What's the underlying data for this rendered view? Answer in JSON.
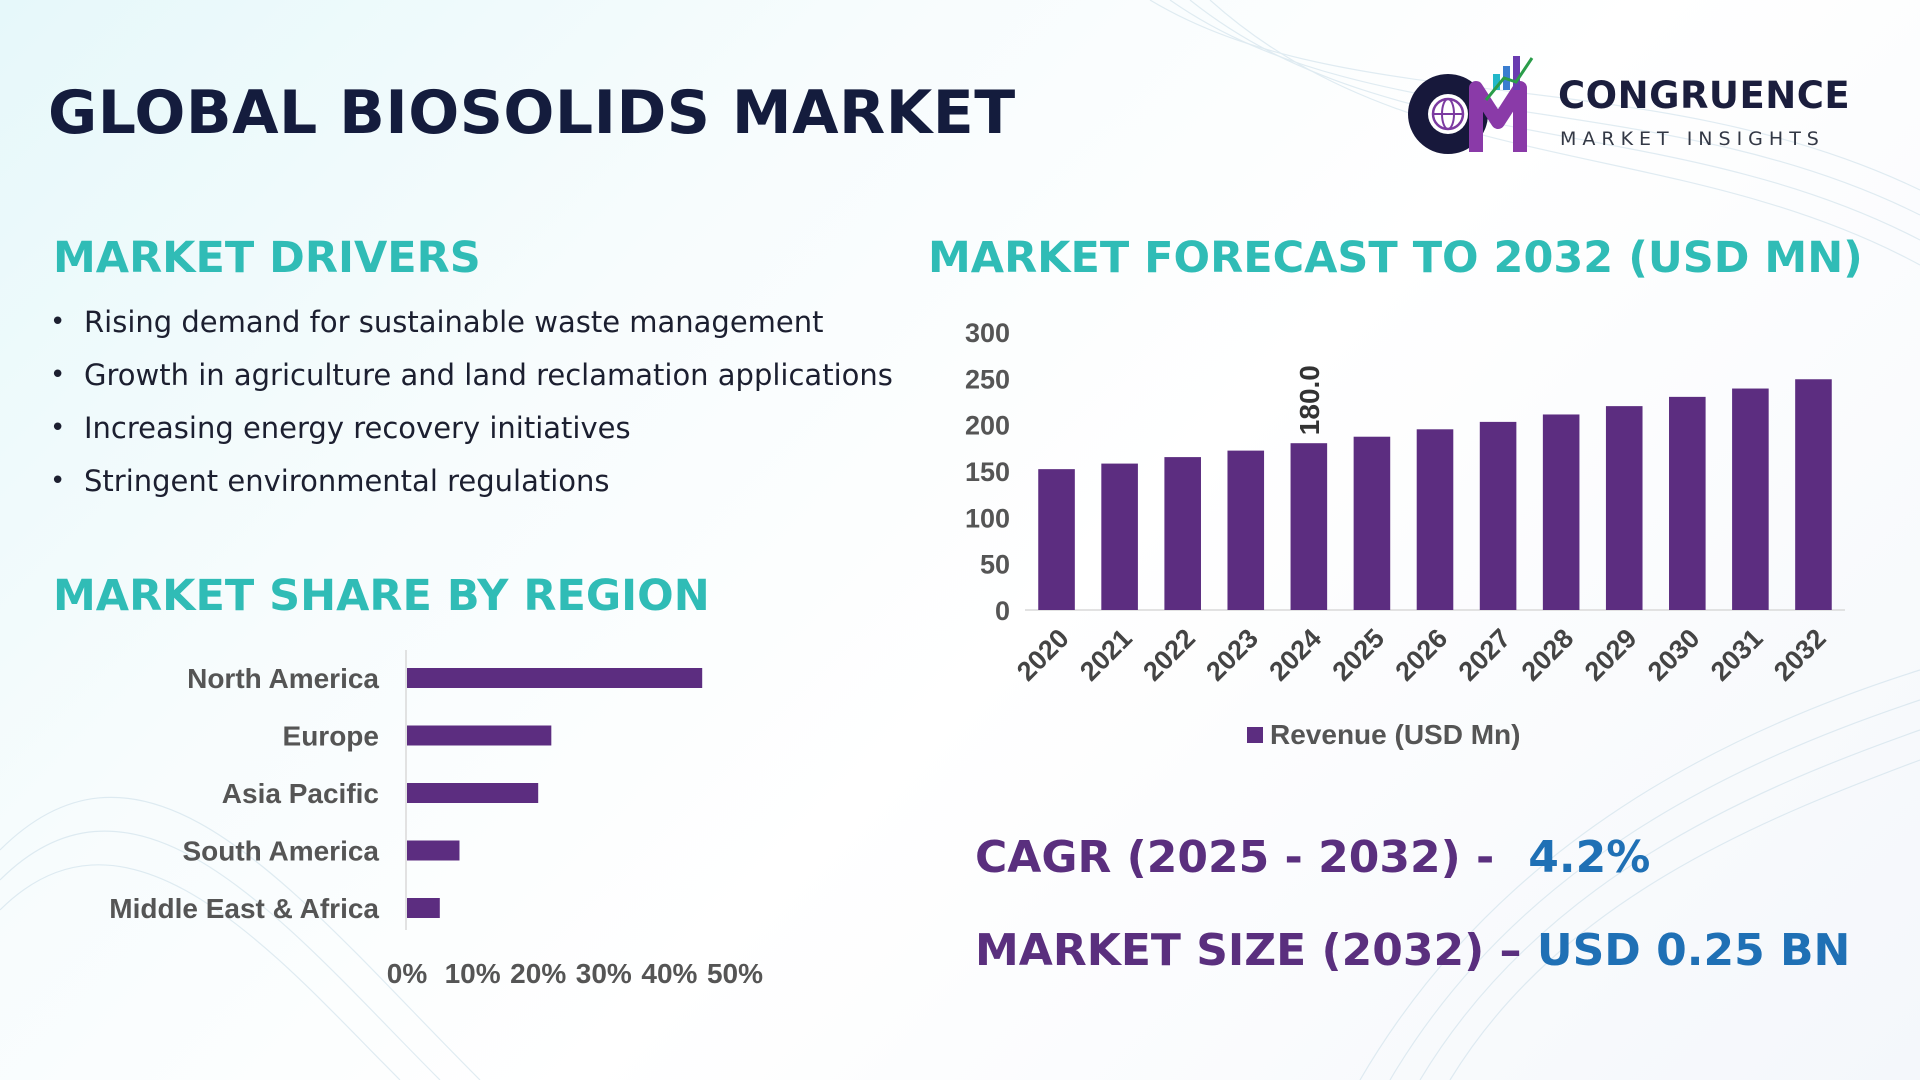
{
  "title": "GLOBAL BIOSOLIDS MARKET",
  "logo": {
    "name": "CONGRUENCE",
    "tagline": "MARKET INSIGHTS",
    "icon": "globe-bar-chart-icon"
  },
  "drivers": {
    "heading": "MARKET DRIVERS",
    "items": [
      "Rising demand for sustainable waste management",
      "Growth in agriculture and land reclamation applications",
      "Increasing energy recovery initiatives",
      "Stringent environmental regulations"
    ]
  },
  "region": {
    "heading": "MARKET SHARE BY REGION"
  },
  "forecast": {
    "heading": "MARKET FORECAST TO 2032 (USD MN)"
  },
  "cagr": {
    "label": "CAGR (2025 - 2032) -",
    "value": "4.2%"
  },
  "market_size": {
    "label": "MARKET SIZE (2032) –",
    "value": "USD 0.25 BN"
  },
  "colors": {
    "bar": "#5c2d80",
    "section_heading": "#30bcb6",
    "title": "#141c3d",
    "stat_label": "#5a2f7e",
    "stat_value": "#1f70b5"
  },
  "chart_data": [
    {
      "type": "bar",
      "categories": [
        "2020",
        "2021",
        "2022",
        "2023",
        "2024",
        "2025",
        "2026",
        "2027",
        "2028",
        "2029",
        "2030",
        "2031",
        "2032"
      ],
      "series": [
        {
          "name": "Revenue (USD Mn)",
          "values": [
            152,
            158,
            165,
            172,
            180,
            187,
            195,
            203,
            211,
            220,
            230,
            239,
            249
          ]
        }
      ],
      "data_labels": [
        {
          "category": "2024",
          "text": "180.0"
        }
      ],
      "ylim": [
        0,
        300
      ],
      "yticks": [
        0,
        50,
        100,
        150,
        200,
        250,
        300
      ],
      "grid": false,
      "legend": "bottom"
    },
    {
      "type": "bar",
      "orientation": "horizontal",
      "categories": [
        "North America",
        "Europe",
        "Asia Pacific",
        "South America",
        "Middle East & Africa"
      ],
      "values": [
        45,
        22,
        20,
        8,
        5
      ],
      "unit": "%",
      "xlim": [
        0,
        50
      ],
      "xticks": [
        "0%",
        "10%",
        "20%",
        "30%",
        "40%",
        "50%"
      ],
      "grid": false
    }
  ]
}
